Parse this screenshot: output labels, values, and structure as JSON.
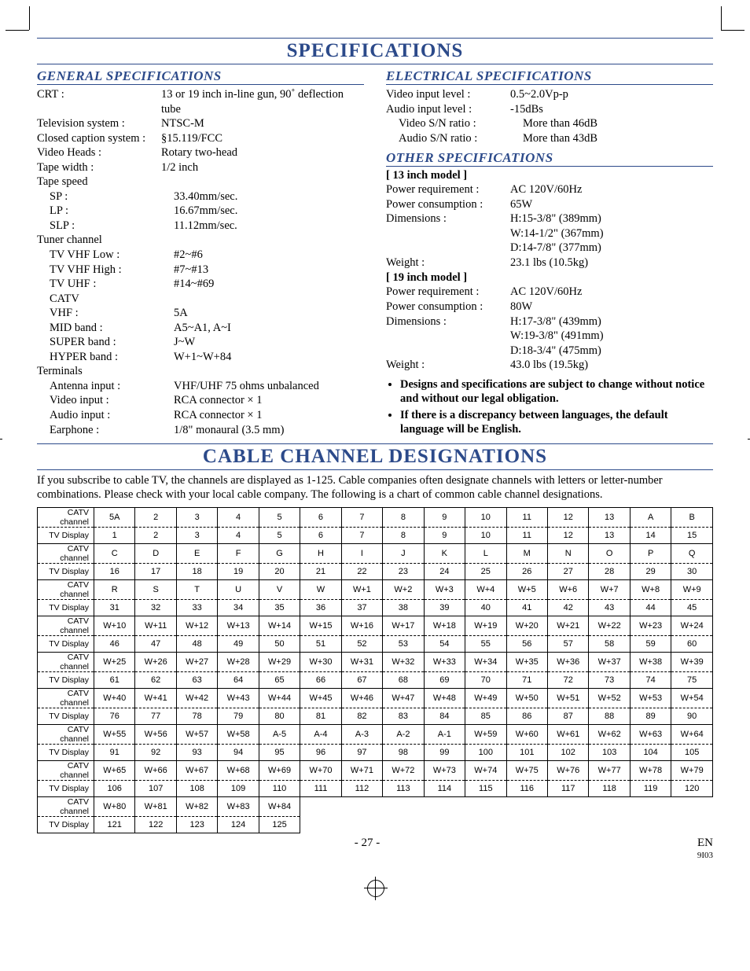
{
  "colors": {
    "accent": "#2c4a8a",
    "text": "#000",
    "rule": "#2c4a8a"
  },
  "page": {
    "title1": "SPECIFICATIONS",
    "title2": "CABLE CHANNEL DESIGNATIONS",
    "pageNum": "- 27 -",
    "lang": "EN",
    "code": "9I03"
  },
  "sections": {
    "general": "GENERAL SPECIFICATIONS",
    "electrical": "ELECTRICAL SPECIFICATIONS",
    "other": "OTHER SPECIFICATIONS"
  },
  "general": [
    {
      "l": "CRT :",
      "v": "13 or 19 inch in-line gun, 90˚ deflection tube"
    },
    {
      "l": "Television system :",
      "v": "NTSC-M"
    },
    {
      "l": "Closed caption system :",
      "v": "§15.119/FCC"
    },
    {
      "l": "Video Heads :",
      "v": "Rotary two-head"
    },
    {
      "l": "Tape width :",
      "v": "1/2 inch"
    },
    {
      "l": "Tape speed",
      "v": ""
    },
    {
      "l": "SP :",
      "v": "33.40mm/sec.",
      "i": 1
    },
    {
      "l": "LP :",
      "v": "16.67mm/sec.",
      "i": 1
    },
    {
      "l": "SLP :",
      "v": "11.12mm/sec.",
      "i": 1
    },
    {
      "l": "Tuner channel",
      "v": ""
    },
    {
      "l": "TV VHF Low :",
      "v": "#2~#6",
      "i": 1
    },
    {
      "l": "TV VHF High :",
      "v": "#7~#13",
      "i": 1
    },
    {
      "l": "TV UHF :",
      "v": "#14~#69",
      "i": 1
    },
    {
      "l": "CATV",
      "v": "",
      "i": 1
    },
    {
      "l": "VHF :",
      "v": "5A",
      "i": 1
    },
    {
      "l": "MID band :",
      "v": "A5~A1, A~I",
      "i": 1
    },
    {
      "l": "SUPER band :",
      "v": "J~W",
      "i": 1
    },
    {
      "l": "HYPER band :",
      "v": "W+1~W+84",
      "i": 1
    },
    {
      "l": "Terminals",
      "v": ""
    },
    {
      "l": "Antenna input :",
      "v": "VHF/UHF 75 ohms unbalanced",
      "i": 1
    },
    {
      "l": "Video input :",
      "v": "RCA connector × 1",
      "i": 1
    },
    {
      "l": "Audio input :",
      "v": "RCA connector × 1",
      "i": 1
    },
    {
      "l": "Earphone :",
      "v": "1/8\" monaural (3.5 mm)",
      "i": 1
    }
  ],
  "electrical": [
    {
      "l": "Video input level :",
      "v": "0.5~2.0Vp-p"
    },
    {
      "l": "Audio input level :",
      "v": "-15dBs"
    },
    {
      "l": "Video S/N ratio :",
      "v": "More than 46dB",
      "i": 1
    },
    {
      "l": "Audio S/N ratio :",
      "v": "More than 43dB",
      "i": 1
    }
  ],
  "other": {
    "m13": "[ 13 inch model ]",
    "m13rows": [
      {
        "l": "Power requirement :",
        "v": "AC 120V/60Hz"
      },
      {
        "l": "Power consumption :",
        "v": "65W"
      },
      {
        "l": "Dimensions :",
        "v": "H:15-3/8\" (389mm)"
      },
      {
        "l": "",
        "v": "W:14-1/2\" (367mm)"
      },
      {
        "l": "",
        "v": "D:14-7/8\" (377mm)"
      },
      {
        "l": "Weight :",
        "v": "23.1 lbs (10.5kg)"
      }
    ],
    "m19": "[ 19 inch model ]",
    "m19rows": [
      {
        "l": "Power requirement :",
        "v": "AC 120V/60Hz"
      },
      {
        "l": "Power consumption :",
        "v": "80W"
      },
      {
        "l": "Dimensions :",
        "v": "H:17-3/8\" (439mm)"
      },
      {
        "l": "",
        "v": "W:19-3/8\" (491mm)"
      },
      {
        "l": "",
        "v": "D:18-3/4\" (475mm)"
      },
      {
        "l": "Weight :",
        "v": "43.0 lbs (19.5kg)"
      }
    ]
  },
  "bullets": [
    "Designs and specifications are subject to change without notice and without our legal obligation.",
    "If there is a discrepancy between languages, the default language will be English."
  ],
  "ccd": {
    "intro": "If you subscribe to cable TV, the channels are displayed as 1-125. Cable companies often designate channels with letters or letter-number combinations. Please check with your local cable company. The following is a chart of common cable channel designations.",
    "rowLabelCatv": "CATV channel",
    "rowLabelTv": "TV Display",
    "cols": 15,
    "pairs": [
      {
        "catv": [
          "5A",
          "2",
          "3",
          "4",
          "5",
          "6",
          "7",
          "8",
          "9",
          "10",
          "11",
          "12",
          "13",
          "A",
          "B"
        ],
        "tv": [
          "1",
          "2",
          "3",
          "4",
          "5",
          "6",
          "7",
          "8",
          "9",
          "10",
          "11",
          "12",
          "13",
          "14",
          "15"
        ]
      },
      {
        "catv": [
          "C",
          "D",
          "E",
          "F",
          "G",
          "H",
          "I",
          "J",
          "K",
          "L",
          "M",
          "N",
          "O",
          "P",
          "Q"
        ],
        "tv": [
          "16",
          "17",
          "18",
          "19",
          "20",
          "21",
          "22",
          "23",
          "24",
          "25",
          "26",
          "27",
          "28",
          "29",
          "30"
        ]
      },
      {
        "catv": [
          "R",
          "S",
          "T",
          "U",
          "V",
          "W",
          "W+1",
          "W+2",
          "W+3",
          "W+4",
          "W+5",
          "W+6",
          "W+7",
          "W+8",
          "W+9"
        ],
        "tv": [
          "31",
          "32",
          "33",
          "34",
          "35",
          "36",
          "37",
          "38",
          "39",
          "40",
          "41",
          "42",
          "43",
          "44",
          "45"
        ]
      },
      {
        "catv": [
          "W+10",
          "W+11",
          "W+12",
          "W+13",
          "W+14",
          "W+15",
          "W+16",
          "W+17",
          "W+18",
          "W+19",
          "W+20",
          "W+21",
          "W+22",
          "W+23",
          "W+24"
        ],
        "tv": [
          "46",
          "47",
          "48",
          "49",
          "50",
          "51",
          "52",
          "53",
          "54",
          "55",
          "56",
          "57",
          "58",
          "59",
          "60"
        ]
      },
      {
        "catv": [
          "W+25",
          "W+26",
          "W+27",
          "W+28",
          "W+29",
          "W+30",
          "W+31",
          "W+32",
          "W+33",
          "W+34",
          "W+35",
          "W+36",
          "W+37",
          "W+38",
          "W+39"
        ],
        "tv": [
          "61",
          "62",
          "63",
          "64",
          "65",
          "66",
          "67",
          "68",
          "69",
          "70",
          "71",
          "72",
          "73",
          "74",
          "75"
        ]
      },
      {
        "catv": [
          "W+40",
          "W+41",
          "W+42",
          "W+43",
          "W+44",
          "W+45",
          "W+46",
          "W+47",
          "W+48",
          "W+49",
          "W+50",
          "W+51",
          "W+52",
          "W+53",
          "W+54"
        ],
        "tv": [
          "76",
          "77",
          "78",
          "79",
          "80",
          "81",
          "82",
          "83",
          "84",
          "85",
          "86",
          "87",
          "88",
          "89",
          "90"
        ]
      },
      {
        "catv": [
          "W+55",
          "W+56",
          "W+57",
          "W+58",
          "A-5",
          "A-4",
          "A-3",
          "A-2",
          "A-1",
          "W+59",
          "W+60",
          "W+61",
          "W+62",
          "W+63",
          "W+64"
        ],
        "tv": [
          "91",
          "92",
          "93",
          "94",
          "95",
          "96",
          "97",
          "98",
          "99",
          "100",
          "101",
          "102",
          "103",
          "104",
          "105"
        ]
      },
      {
        "catv": [
          "W+65",
          "W+66",
          "W+67",
          "W+68",
          "W+69",
          "W+70",
          "W+71",
          "W+72",
          "W+73",
          "W+74",
          "W+75",
          "W+76",
          "W+77",
          "W+78",
          "W+79"
        ],
        "tv": [
          "106",
          "107",
          "108",
          "109",
          "110",
          "111",
          "112",
          "113",
          "114",
          "115",
          "116",
          "117",
          "118",
          "119",
          "120"
        ]
      },
      {
        "catv": [
          "W+80",
          "W+81",
          "W+82",
          "W+83",
          "W+84",
          "",
          "",
          "",
          "",
          "",
          "",
          "",
          "",
          "",
          ""
        ],
        "tv": [
          "121",
          "122",
          "123",
          "124",
          "125",
          "",
          "",
          "",
          "",
          "",
          "",
          "",
          "",
          "",
          ""
        ]
      }
    ]
  }
}
